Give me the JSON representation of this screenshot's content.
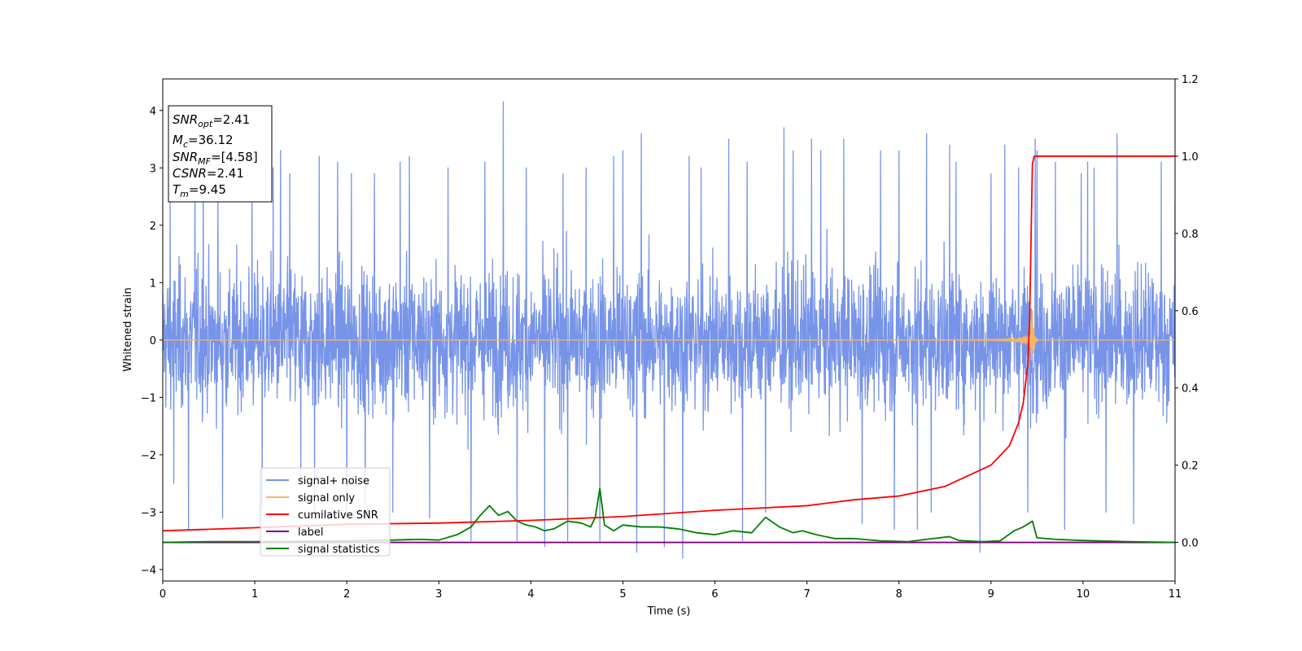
{
  "chart_data": {
    "type": "line",
    "xlabel": "Time (s)",
    "ylabel": "Whitened strain",
    "xlim": [
      0,
      11
    ],
    "ylim_left": [
      -4.2,
      4.55
    ],
    "ylim_right": [
      -0.1,
      1.2
    ],
    "x_ticks": [
      "0",
      "1",
      "2",
      "3",
      "4",
      "5",
      "6",
      "7",
      "8",
      "9",
      "10",
      "11"
    ],
    "y_ticks_left": [
      "−4",
      "−3",
      "−2",
      "−1",
      "0",
      "1",
      "2",
      "3",
      "4"
    ],
    "y_ticks_right": [
      "0.0",
      "0.2",
      "0.4",
      "0.6",
      "0.8",
      "1.0",
      "1.2"
    ],
    "legend_position": "lower-left",
    "colors": {
      "signal_noise": "#7794e8",
      "signal_only": "#f2b566",
      "cumulative_snr": "#ff0000",
      "label": "#800080",
      "signal_statistics": "#008000"
    },
    "series": [
      {
        "name": "signal+ noise",
        "axis": "left",
        "description_stats": {
          "t_start": 0,
          "t_end": 11,
          "typical_amplitude": 2.0,
          "peak_max": 4.15,
          "peak_min": -3.8
        },
        "peaks": [
          [
            0.08,
            2.4
          ],
          [
            0.12,
            -2.5
          ],
          [
            0.28,
            -3.3
          ],
          [
            0.35,
            3.2
          ],
          [
            0.44,
            3.0
          ],
          [
            0.6,
            2.5
          ],
          [
            0.65,
            -3.1
          ],
          [
            0.97,
            3.0
          ],
          [
            1.08,
            -2.9
          ],
          [
            1.2,
            3.0
          ],
          [
            1.28,
            3.3
          ],
          [
            1.38,
            2.9
          ],
          [
            1.5,
            -2.5
          ],
          [
            1.65,
            -3.0
          ],
          [
            1.7,
            3.2
          ],
          [
            1.9,
            3.1
          ],
          [
            2.0,
            -3.0
          ],
          [
            2.05,
            2.9
          ],
          [
            2.2,
            -3.1
          ],
          [
            2.3,
            2.9
          ],
          [
            2.5,
            -3.0
          ],
          [
            2.58,
            3.1
          ],
          [
            2.68,
            3.2
          ],
          [
            2.9,
            -3.1
          ],
          [
            3.1,
            3.0
          ],
          [
            3.35,
            -3.5
          ],
          [
            3.5,
            3.1
          ],
          [
            3.7,
            4.15
          ],
          [
            3.85,
            -3.5
          ],
          [
            3.95,
            3.0
          ],
          [
            4.15,
            -3.6
          ],
          [
            4.35,
            2.9
          ],
          [
            4.4,
            -3.5
          ],
          [
            4.6,
            3.0
          ],
          [
            4.75,
            -3.5
          ],
          [
            4.9,
            3.2
          ],
          [
            5.0,
            3.3
          ],
          [
            5.15,
            -3.7
          ],
          [
            5.2,
            3.6
          ],
          [
            5.45,
            -3.6
          ],
          [
            5.65,
            -3.8
          ],
          [
            5.72,
            3.2
          ],
          [
            5.85,
            3.0
          ],
          [
            6.15,
            3.5
          ],
          [
            6.3,
            -3.5
          ],
          [
            6.35,
            3.1
          ],
          [
            6.55,
            -3.0
          ],
          [
            6.75,
            3.7
          ],
          [
            6.85,
            3.3
          ],
          [
            7.05,
            3.5
          ],
          [
            7.15,
            3.3
          ],
          [
            7.4,
            3.5
          ],
          [
            7.6,
            -3.2
          ],
          [
            7.8,
            3.3
          ],
          [
            7.95,
            -3.3
          ],
          [
            8.0,
            3.3
          ],
          [
            8.2,
            -3.3
          ],
          [
            8.3,
            3.6
          ],
          [
            8.35,
            -3.0
          ],
          [
            8.55,
            3.4
          ],
          [
            8.62,
            3.1
          ],
          [
            8.88,
            -3.7
          ],
          [
            9.0,
            2.9
          ],
          [
            9.15,
            3.4
          ],
          [
            9.3,
            3.0
          ],
          [
            9.4,
            -3.0
          ],
          [
            9.48,
            3.5
          ],
          [
            9.5,
            3.3
          ],
          [
            9.7,
            3.1
          ],
          [
            9.8,
            -3.3
          ],
          [
            9.98,
            2.9
          ],
          [
            10.05,
            3.1
          ],
          [
            10.12,
            3.0
          ],
          [
            10.25,
            -3.0
          ],
          [
            10.37,
            3.6
          ],
          [
            10.55,
            -3.2
          ],
          [
            10.85,
            3.1
          ],
          [
            11.0,
            2.4
          ]
        ]
      },
      {
        "name": "signal only",
        "axis": "left",
        "chirp": {
          "merger_time": 9.45,
          "peak_amplitude": 0.58,
          "baseline": 0.0
        }
      },
      {
        "name": "cumilative SNR",
        "axis": "right",
        "x": [
          0,
          1,
          2,
          3,
          4,
          5,
          6,
          7,
          7.5,
          8,
          8.5,
          9,
          9.2,
          9.3,
          9.35,
          9.4,
          9.42,
          9.44,
          9.45,
          9.47,
          11
        ],
        "y": [
          0.03,
          0.038,
          0.047,
          0.05,
          0.057,
          0.067,
          0.083,
          0.095,
          0.11,
          0.12,
          0.145,
          0.2,
          0.25,
          0.31,
          0.36,
          0.46,
          0.58,
          0.85,
          0.98,
          1.0,
          1.0
        ]
      },
      {
        "name": "label",
        "axis": "right",
        "x": [
          0,
          11
        ],
        "y": [
          0.0,
          0.0
        ]
      },
      {
        "name": "signal statistics",
        "axis": "right",
        "x": [
          0,
          0.5,
          1.0,
          1.5,
          2.0,
          2.5,
          2.8,
          3.0,
          3.2,
          3.35,
          3.45,
          3.55,
          3.65,
          3.75,
          3.85,
          3.95,
          4.05,
          4.15,
          4.25,
          4.4,
          4.55,
          4.65,
          4.7,
          4.75,
          4.8,
          4.9,
          5.0,
          5.2,
          5.4,
          5.6,
          5.8,
          6.0,
          6.2,
          6.4,
          6.55,
          6.7,
          6.85,
          6.95,
          7.1,
          7.3,
          7.5,
          7.8,
          8.1,
          8.3,
          8.55,
          8.65,
          8.9,
          9.1,
          9.25,
          9.35,
          9.45,
          9.5,
          9.7,
          10.0,
          10.5,
          11.0
        ],
        "y": [
          0.0,
          0.002,
          0.002,
          0.003,
          0.004,
          0.006,
          0.008,
          0.006,
          0.02,
          0.04,
          0.07,
          0.095,
          0.07,
          0.08,
          0.055,
          0.045,
          0.04,
          0.03,
          0.035,
          0.055,
          0.05,
          0.04,
          0.065,
          0.14,
          0.045,
          0.03,
          0.045,
          0.04,
          0.04,
          0.035,
          0.025,
          0.02,
          0.03,
          0.025,
          0.065,
          0.04,
          0.025,
          0.03,
          0.02,
          0.01,
          0.01,
          0.004,
          0.002,
          0.008,
          0.015,
          0.005,
          0.002,
          0.004,
          0.03,
          0.04,
          0.055,
          0.012,
          0.008,
          0.005,
          0.002,
          0.0
        ]
      }
    ],
    "legend": [
      "signal+ noise",
      "signal only",
      "cumilative SNR",
      "label",
      "signal statistics"
    ],
    "annotations": {
      "snr_opt": {
        "base": "SNR",
        "sub": "opt",
        "value": "=2.41"
      },
      "mc": {
        "base": "M",
        "sub": "c",
        "value": "=36.12"
      },
      "snr_mf": {
        "base": "SNR",
        "sub": "MF",
        "value": "=[4.58]"
      },
      "csnr": {
        "base": "CSNR",
        "sub": "",
        "value": "=2.41"
      },
      "tm": {
        "base": "T",
        "sub": "m",
        "value": "=9.45"
      }
    }
  }
}
